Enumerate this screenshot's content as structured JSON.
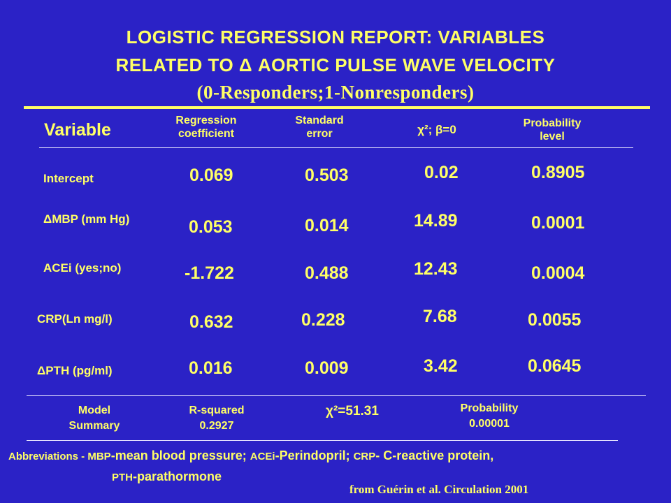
{
  "title": {
    "line1": "LOGISTIC  REGRESSION REPORT: VARIABLES",
    "line2": "RELATED TO  Δ  AORTIC PULSE WAVE VELOCITY",
    "line3": "(0-Responders;1-Nonresponders)"
  },
  "table": {
    "headers": {
      "variable": "Variable",
      "regression_line1": "Regression",
      "regression_line2": "coefficient",
      "stderr_line1": "Standard",
      "stderr_line2": "error",
      "chi": "χ²; β=0",
      "prob_line1": "Probability",
      "prob_line2": "level"
    },
    "rows": [
      {
        "label": "Intercept",
        "coef": "0.069",
        "se": "0.503",
        "chi": "0.02",
        "p": "0.8905"
      },
      {
        "label": "ΔMBP (mm Hg)",
        "coef": "0.053",
        "se": "0.014",
        "chi": "14.89",
        "p": "0.0001"
      },
      {
        "label": "ACEi (yes;no)",
        "coef": "-1.722",
        "se": "0.488",
        "chi": "12.43",
        "p": "0.0004"
      },
      {
        "label": "CRP(Ln mg/l)",
        "coef": "0.632",
        "se": "0.228",
        "chi": "7.68",
        "p": "0.0055"
      },
      {
        "label": "ΔPTH (pg/ml)",
        "coef": "0.016",
        "se": "0.009",
        "chi": "3.42",
        "p": "0.0645"
      }
    ]
  },
  "summary": {
    "model_line1": "Model",
    "model_line2": "Summary",
    "rsq_label": "R-squared",
    "rsq_value": "0.2927",
    "chi": "χ²=51.31",
    "prob_label": "Probability",
    "prob_value": "0.00001"
  },
  "abbreviations": {
    "prefix": "Abbreviations - ",
    "mbp_abbr": "MBP",
    "mbp_def": "-mean blood pressure; ",
    "acei_abbr": "ACEi",
    "acei_def": "-Perindopril; ",
    "crp_abbr": "CRP",
    "crp_def": "- C-reactive protein,",
    "pth_abbr": "PTH",
    "pth_def": "-parathormone"
  },
  "source": "from Guérin et al. Circulation 2001",
  "colors": {
    "background": "#2b22c6",
    "text": "#ffff66",
    "rule": "#e8e6ff"
  }
}
